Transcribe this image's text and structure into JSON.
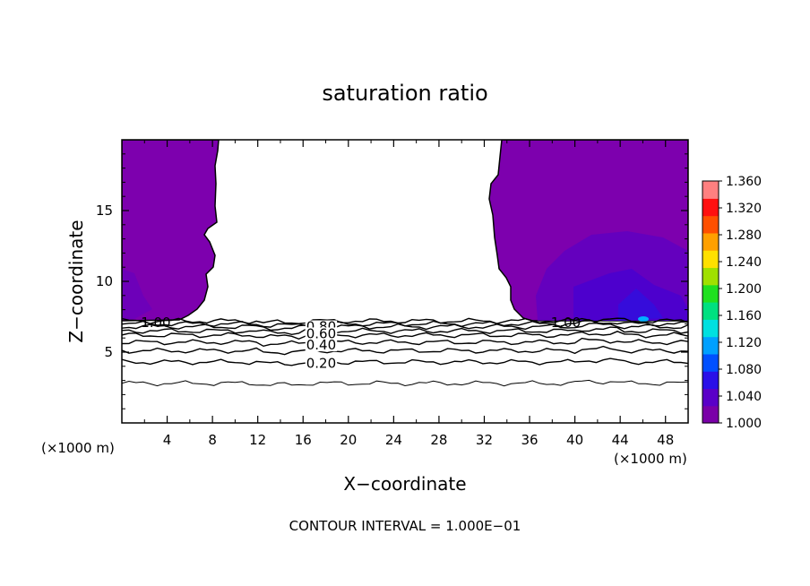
{
  "chart_data": {
    "type": "contour",
    "title": "saturation ratio",
    "xlabel": "X−coordinate",
    "ylabel": "Z−coordinate",
    "x_unit_left": "(×1000 m)",
    "x_unit_right": "(×1000 m)",
    "footer": "CONTOUR INTERVAL = 1.000E−01",
    "xlim": [
      0,
      50
    ],
    "ylim": [
      0,
      20
    ],
    "xticks": [
      4,
      8,
      12,
      16,
      20,
      24,
      28,
      32,
      36,
      40,
      44,
      48
    ],
    "yticks": [
      5,
      10,
      15
    ],
    "contour_labels": [
      {
        "text": "1.00",
        "x": 3.0,
        "z": 7.1
      },
      {
        "text": "0.80",
        "x": 17.6,
        "z": 6.8
      },
      {
        "text": "0.60",
        "x": 17.6,
        "z": 6.3
      },
      {
        "text": "0.40",
        "x": 17.6,
        "z": 5.5
      },
      {
        "text": "0.20",
        "x": 17.6,
        "z": 4.2
      },
      {
        "text": "1.00",
        "x": 39.2,
        "z": 7.1
      }
    ],
    "contour_lines_z": [
      2.8,
      4.3,
      5.1,
      5.7,
      6.2,
      6.5,
      6.8,
      7.0,
      7.2
    ],
    "supersaturated_regions": [
      {
        "x_from": 0,
        "x_to": 8.5,
        "z_from": 7.2,
        "z_to": 20
      },
      {
        "x_from": 33.5,
        "x_to": 50,
        "z_from": 7.2,
        "z_to": 20
      }
    ],
    "colorbar": {
      "min": 1.0,
      "max": 1.36,
      "tick_labels": [
        "1.360",
        "1.320",
        "1.280",
        "1.240",
        "1.200",
        "1.160",
        "1.120",
        "1.080",
        "1.040",
        "1.000"
      ],
      "colors": [
        "#7a00a8",
        "#5a00c8",
        "#2a10e8",
        "#0050ff",
        "#00a0ff",
        "#00e0e0",
        "#00e080",
        "#20e020",
        "#a0e000",
        "#ffe000",
        "#ffa000",
        "#ff5000",
        "#ff1010",
        "#ff8080"
      ]
    }
  }
}
